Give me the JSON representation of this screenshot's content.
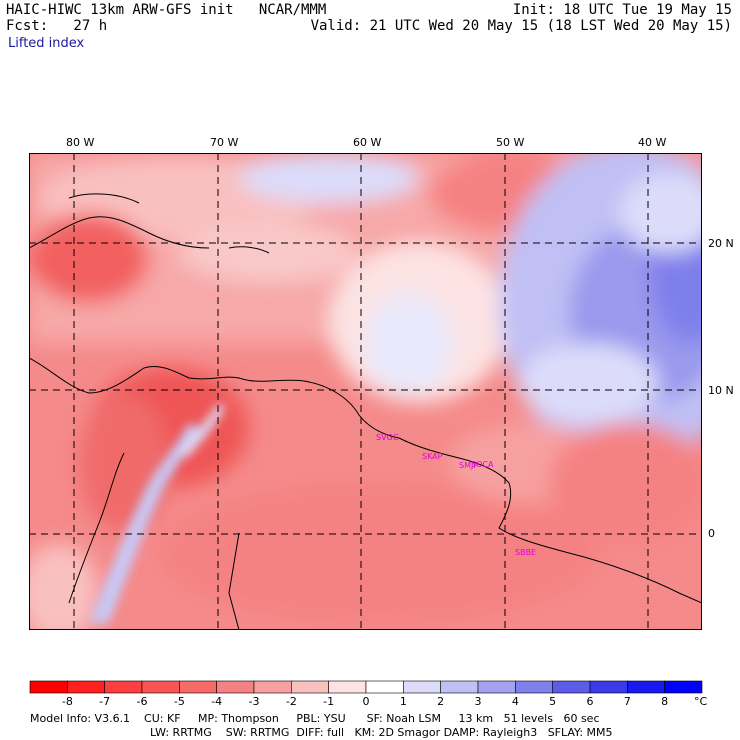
{
  "header": {
    "model_line": "HAIC-HIWC 13km ARW-GFS init   NCAR/MMM",
    "fcst_line": "Fcst:   27 h",
    "field": "Lifted index",
    "init": "Init: 18 UTC Tue 19 May 15",
    "valid": "Valid: 21 UTC Wed 20 May 15 (18 LST Wed 20 May 15)"
  },
  "axes": {
    "lon_labels": [
      "80 W",
      "70 W",
      "60 W",
      "50 W",
      "40 W"
    ],
    "lat_labels": [
      "20 N",
      "10 N",
      "0"
    ]
  },
  "stations": [
    "SVGC",
    "SKAP",
    "SMJP",
    "SOCA",
    "SBBE"
  ],
  "colorbar": {
    "ticks": [
      "-8",
      "-7",
      "-6",
      "-5",
      "-4",
      "-3",
      "-2",
      "-1",
      "0",
      "1",
      "2",
      "3",
      "4",
      "5",
      "6",
      "7",
      "8"
    ],
    "unit": "°C",
    "colors": [
      "#ff0000",
      "#ff2020",
      "#ff3f3f",
      "#f95555",
      "#f66a6a",
      "#f58282",
      "#f7a0a0",
      "#f9c0c0",
      "#fde3e3",
      "#ffffff",
      "#dcdcfa",
      "#c0c0f5",
      "#a2a2f0",
      "#8080ec",
      "#5c5ce8",
      "#3a3ae8",
      "#1818f0",
      "#0000ff"
    ]
  },
  "info": {
    "line1": "Model Info: V3.6.1    CU: KF     MP: Thompson     PBL: YSU      SF: Noah LSM     13 km   51 levels   60 sec",
    "line2": "LW: RRTMG    SW: RRTMG  DIFF: full   KM: 2D Smagor DAMP: Rayleigh3   SFLAY: MM5"
  }
}
